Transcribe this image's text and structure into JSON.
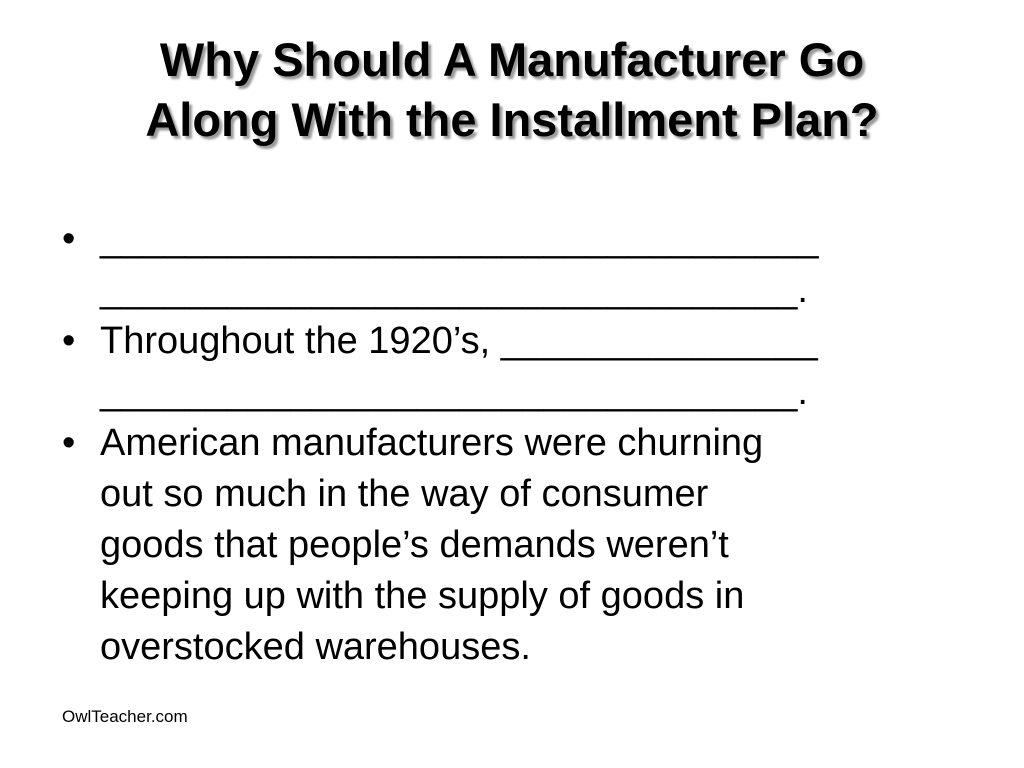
{
  "slide": {
    "title_lines": [
      "Why Should A Manufacturer Go",
      "Along With the Installment Plan?"
    ],
    "bullet_symbol": "•",
    "bullets": [
      {
        "lines": [
          "__________________________________",
          "_________________________________."
        ]
      },
      {
        "lines": [
          "Throughout the 1920’s, _______________",
          "_________________________________."
        ]
      },
      {
        "lines": [
          "American manufacturers were churning",
          "out so much in the way of consumer",
          "goods that people’s demands weren’t",
          "keeping up with the supply of goods in",
          "overstocked warehouses."
        ]
      }
    ],
    "footer": "OwlTeacher.com"
  }
}
